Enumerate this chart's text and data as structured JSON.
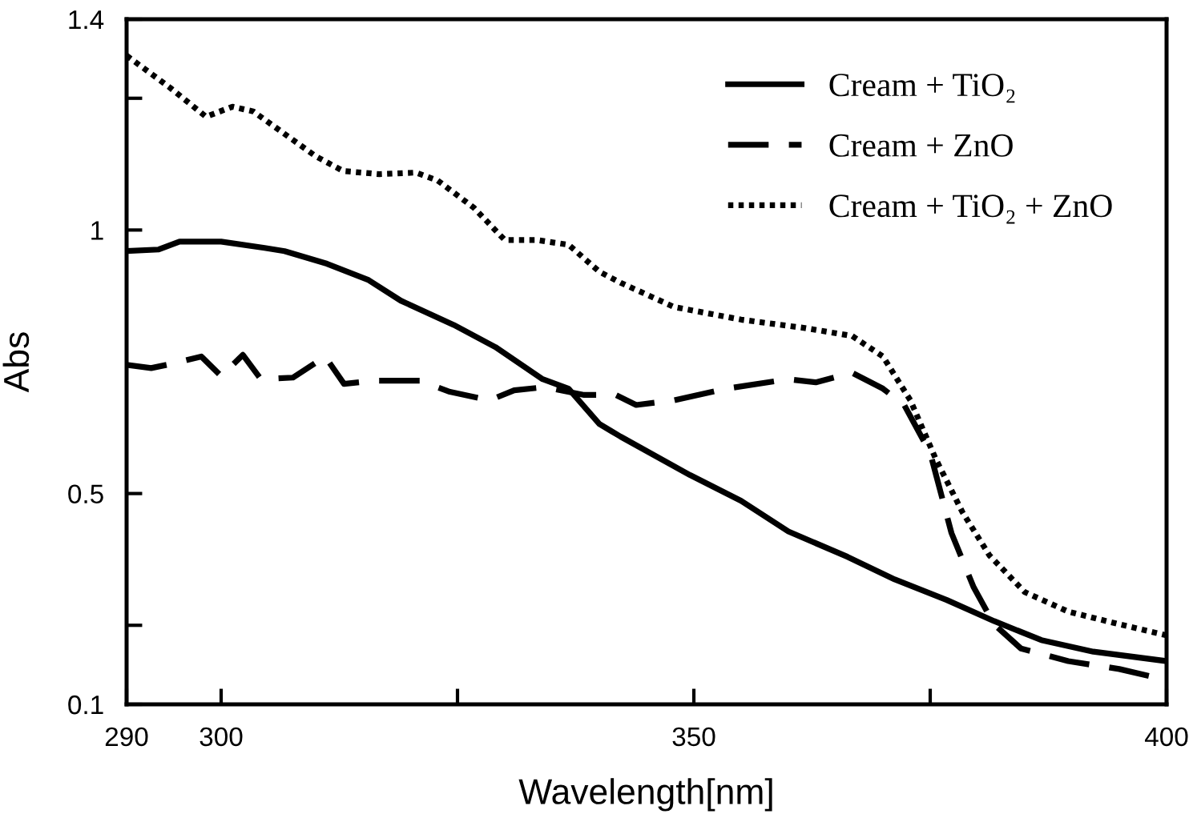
{
  "chart_data": {
    "type": "line",
    "xlabel": "Wavelength[nm]",
    "ylabel": "Abs",
    "xlim": [
      290,
      400
    ],
    "ylim": [
      0.1,
      1.4
    ],
    "xticks": [
      290,
      300,
      {
        "value": 325,
        "label": null
      },
      350,
      {
        "value": 375,
        "label": null
      },
      400
    ],
    "yticks": [
      0.1,
      {
        "value": 0.25,
        "label": null
      },
      0.5,
      1,
      {
        "value": 1.25,
        "label": null
      },
      1.4
    ],
    "grid": false,
    "legend": "top right",
    "marker": "none",
    "series": [
      {
        "name": "Cream + TiO₂",
        "color": "#000000",
        "line_style": "solid",
        "x": [
          290,
          293.4,
          295.6,
          300,
          304.6,
          306.7,
          311.2,
          315.6,
          319,
          324.6,
          329,
          334,
          336.75,
          340,
          342.25,
          349.6,
          355,
          360,
          366.25,
          371.25,
          376.75,
          381.75,
          386.75,
          392.25,
          400
        ],
        "values": [
          0.96,
          0.963,
          0.978,
          0.978,
          0.966,
          0.96,
          0.936,
          0.905,
          0.866,
          0.82,
          0.778,
          0.717,
          0.699,
          0.632,
          0.608,
          0.535,
          0.486,
          0.428,
          0.38,
          0.337,
          0.298,
          0.258,
          0.222,
          0.2,
          0.182
        ]
      },
      {
        "name": "Cream + ZnO",
        "color": "#000000",
        "line_style": "dashed",
        "x": [
          290,
          292.6,
          295,
          297.9,
          300,
          302.3,
          304.2,
          307.6,
          311,
          313,
          316,
          321,
          324.2,
          328.4,
          331,
          334.25,
          338.4,
          341.75,
          343.9,
          347.9,
          353.4,
          360,
          362.9,
          366.75,
          370,
          372.25,
          375,
          377.25,
          379.6,
          381.75,
          384.6,
          389.6,
          395,
          400
        ],
        "values": [
          0.744,
          0.738,
          0.747,
          0.76,
          0.723,
          0.763,
          0.717,
          0.72,
          0.76,
          0.708,
          0.714,
          0.714,
          0.693,
          0.677,
          0.696,
          0.702,
          0.687,
          0.687,
          0.668,
          0.677,
          0.699,
          0.717,
          0.711,
          0.729,
          0.699,
          0.668,
          0.577,
          0.425,
          0.322,
          0.252,
          0.206,
          0.182,
          0.167,
          0.146
        ]
      },
      {
        "name": "Cream + TiO₂ + ZnO",
        "color": "#000000",
        "line_style": "dotted",
        "x": [
          290,
          294.6,
          298.4,
          301.2,
          303.4,
          310,
          312.9,
          316.75,
          320.6,
          322.9,
          326.75,
          330,
          333.4,
          336.75,
          340,
          342.25,
          347.9,
          355,
          361.75,
          366.75,
          370,
          372.9,
          375.6,
          378.4,
          381.25,
          385,
          389.6,
          395,
          400
        ],
        "values": [
          1.331,
          1.27,
          1.215,
          1.234,
          1.225,
          1.14,
          1.112,
          1.106,
          1.109,
          1.094,
          1.042,
          0.981,
          0.981,
          0.972,
          0.921,
          0.9,
          0.854,
          0.83,
          0.814,
          0.799,
          0.76,
          0.677,
          0.565,
          0.465,
          0.383,
          0.313,
          0.276,
          0.252,
          0.231
        ]
      }
    ]
  }
}
